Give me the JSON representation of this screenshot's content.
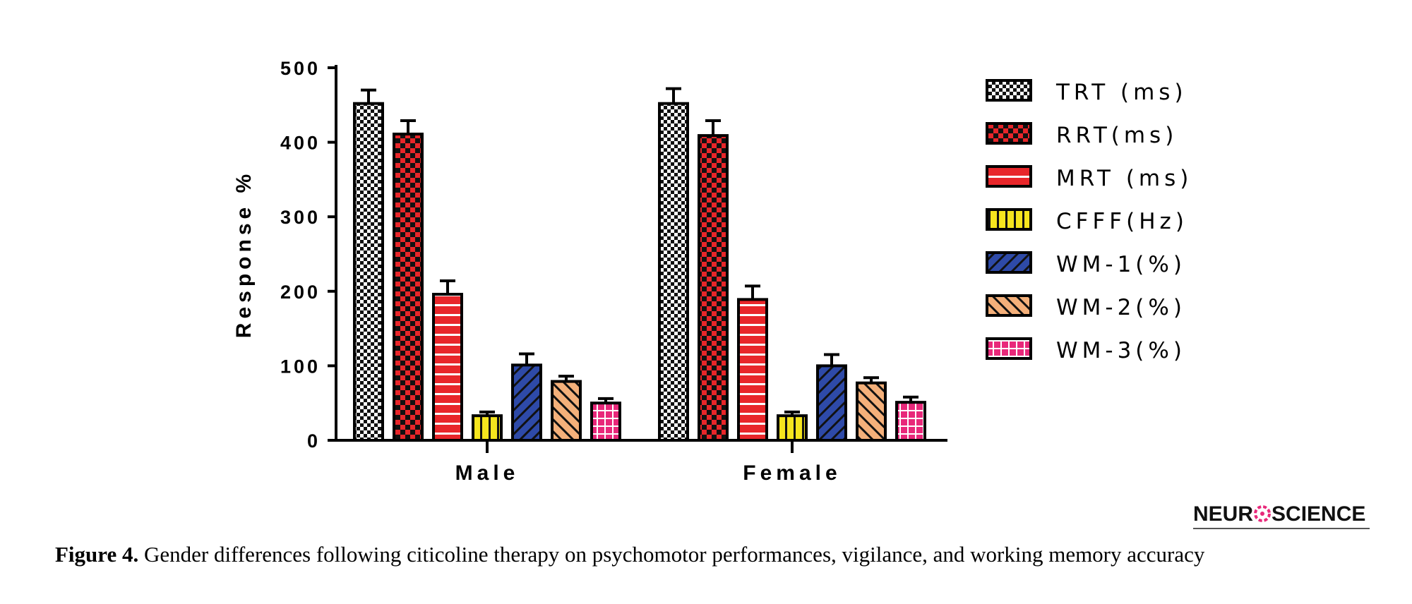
{
  "chart_data": {
    "type": "bar",
    "title": "",
    "xlabel": "",
    "ylabel": "Response %",
    "ylim": [
      0,
      500
    ],
    "yticks": [
      0,
      100,
      200,
      300,
      400,
      500
    ],
    "categories": [
      "Male",
      "Female"
    ],
    "legend_position": "right",
    "grid": false,
    "series": [
      {
        "name": "TRT (ms)",
        "values": [
          452,
          452
        ],
        "errors": [
          18,
          20
        ],
        "color": "#ffffff",
        "pattern": "fine-check"
      },
      {
        "name": "RRT(ms)",
        "values": [
          411,
          409
        ],
        "errors": [
          18,
          20
        ],
        "color": "#e8262a",
        "pattern": "check"
      },
      {
        "name": "MRT (ms)",
        "values": [
          196,
          189
        ],
        "errors": [
          18,
          18
        ],
        "color": "#e8262a",
        "pattern": "horizontal"
      },
      {
        "name": "CFFF(Hz)",
        "values": [
          33,
          33
        ],
        "errors": [
          5,
          5
        ],
        "color": "#f5e51e",
        "pattern": "vertical"
      },
      {
        "name": "WM-1(%)",
        "values": [
          101,
          100
        ],
        "errors": [
          15,
          15
        ],
        "color": "#2e4aa8",
        "pattern": "diagonal"
      },
      {
        "name": "WM-2(%)",
        "values": [
          79,
          77
        ],
        "errors": [
          7,
          7
        ],
        "color": "#f4b07a",
        "pattern": "back-diagonal"
      },
      {
        "name": "WM-3(%)",
        "values": [
          50,
          51
        ],
        "errors": [
          6,
          7
        ],
        "color": "#e8287a",
        "pattern": "grid"
      }
    ]
  },
  "caption": {
    "label": "Figure 4.",
    "text": " Gender differences following citicoline therapy on psychomotor performances, vigilance, and working memory accuracy"
  },
  "logo": {
    "left": "NEUR",
    "right": "SCIENCE",
    "accent": "#e8287a"
  }
}
